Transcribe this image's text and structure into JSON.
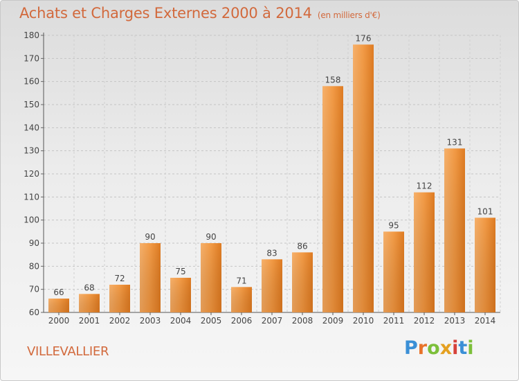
{
  "header": {
    "title": "Achats et Charges Externes 2000 à 2014",
    "subtitle": "(en milliers d'€)"
  },
  "footer": {
    "place": "VILLEVALLIER",
    "logo": [
      "P",
      "r",
      "o",
      "x",
      "i",
      "t",
      "i"
    ]
  },
  "colors": {
    "title": "#d2693c",
    "bar_light": "#f5a554",
    "bar_dark": "#d9751e",
    "logo": [
      "#3a8fd6",
      "#e8732a",
      "#7cbf3a",
      "#e4a020",
      "#d6413a",
      "#3a8fd6",
      "#7cbf3a"
    ]
  },
  "chart_data": {
    "type": "bar",
    "categories": [
      "2000",
      "2001",
      "2002",
      "2003",
      "2004",
      "2005",
      "2006",
      "2007",
      "2008",
      "2009",
      "2010",
      "2011",
      "2012",
      "2013",
      "2014"
    ],
    "values": [
      66,
      68,
      72,
      90,
      75,
      90,
      71,
      83,
      86,
      158,
      176,
      95,
      112,
      131,
      101
    ],
    "ylim": [
      60,
      180
    ],
    "yticks": [
      60,
      70,
      80,
      90,
      100,
      110,
      120,
      130,
      140,
      150,
      160,
      170,
      180
    ],
    "grid": true,
    "legend": "none"
  }
}
